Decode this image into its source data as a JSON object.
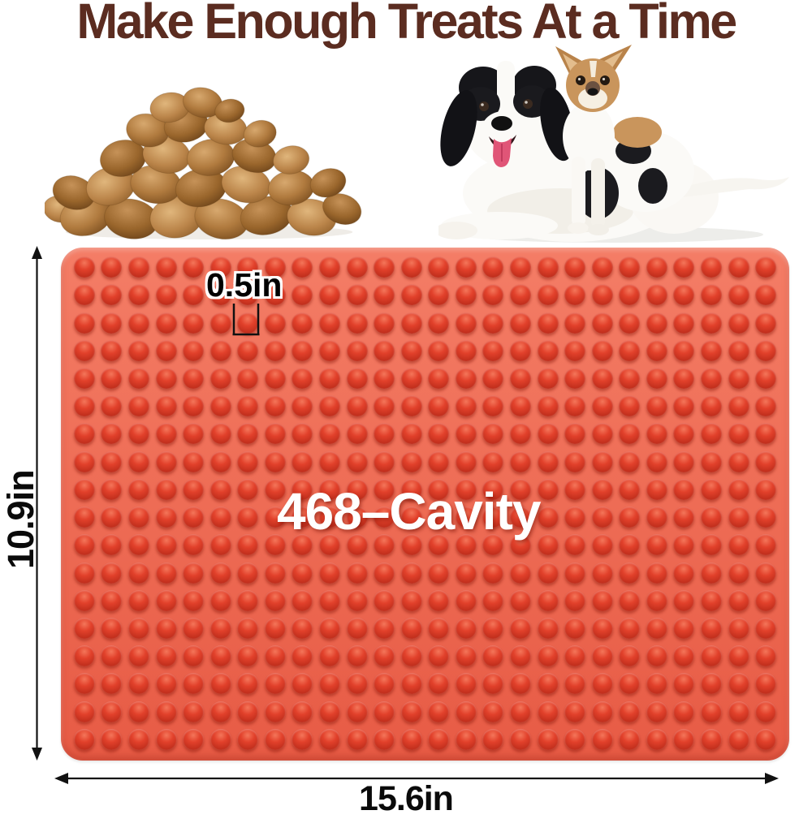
{
  "title": {
    "text": "Make Enough Treats At a Time",
    "color": "#5b2c20"
  },
  "product": {
    "overlay_label": "468–Cavity",
    "cavity_rows": 18,
    "cavity_cols": 26,
    "cavity_count": 468,
    "mat_base_color": "#ee6c55",
    "mat_dome_color": "#e2412b"
  },
  "annotations": {
    "cavity_size_label": "0.5in",
    "height_label": "10.9in",
    "width_label": "15.6in"
  }
}
